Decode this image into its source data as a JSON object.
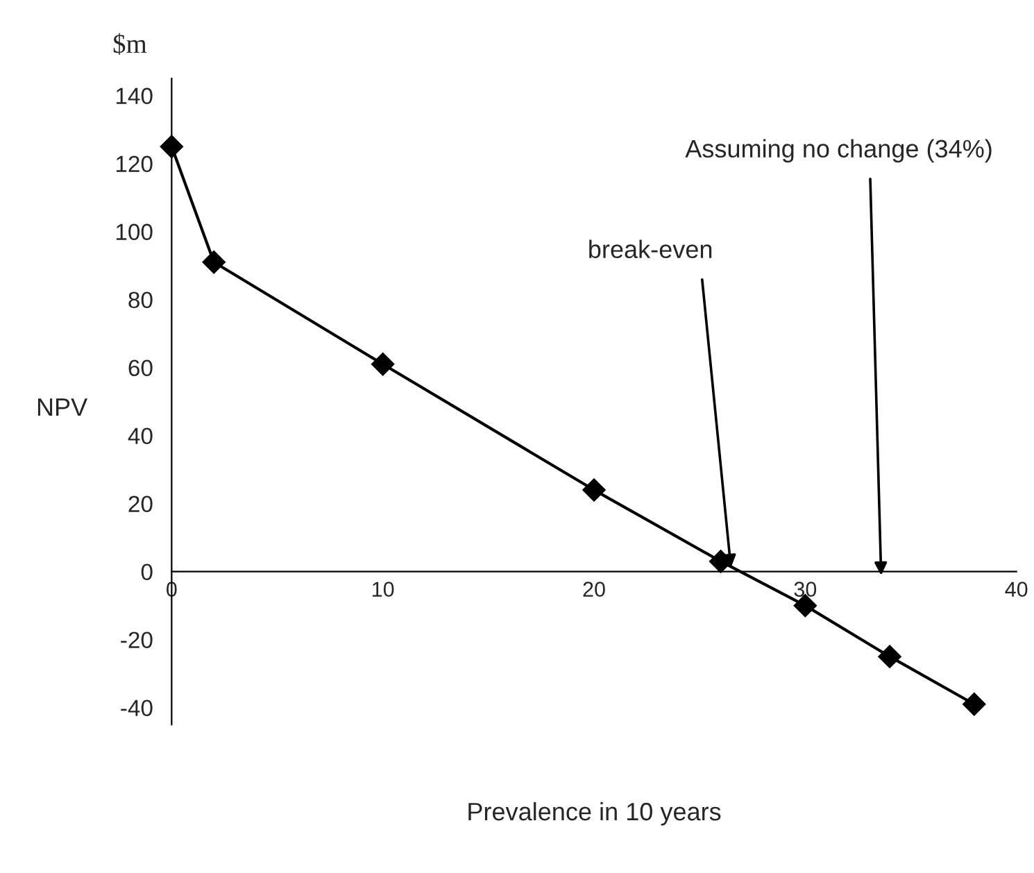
{
  "chart_data": {
    "type": "line",
    "title": "$m",
    "xlabel": "Prevalence in 10 years",
    "ylabel": "NPV",
    "x": [
      0,
      2,
      10,
      20,
      26,
      30,
      34,
      38
    ],
    "series": [
      {
        "color": "#000000",
        "values": [
          125,
          91,
          61,
          24,
          3,
          -10,
          -25,
          -39
        ]
      }
    ],
    "marker": "diamond",
    "line_style": "solid",
    "xlim": [
      0,
      40
    ],
    "xticks": [
      0,
      10,
      20,
      30,
      40
    ],
    "ylim": [
      -45,
      145
    ],
    "yticks": [
      -40,
      -20,
      0,
      20,
      40,
      60,
      80,
      100,
      120,
      140
    ],
    "annotations": [
      {
        "text": "break-even",
        "x": 26.5,
        "y": 0
      },
      "Assuming no change (34%)"
    ],
    "grid": false,
    "legend": false
  }
}
